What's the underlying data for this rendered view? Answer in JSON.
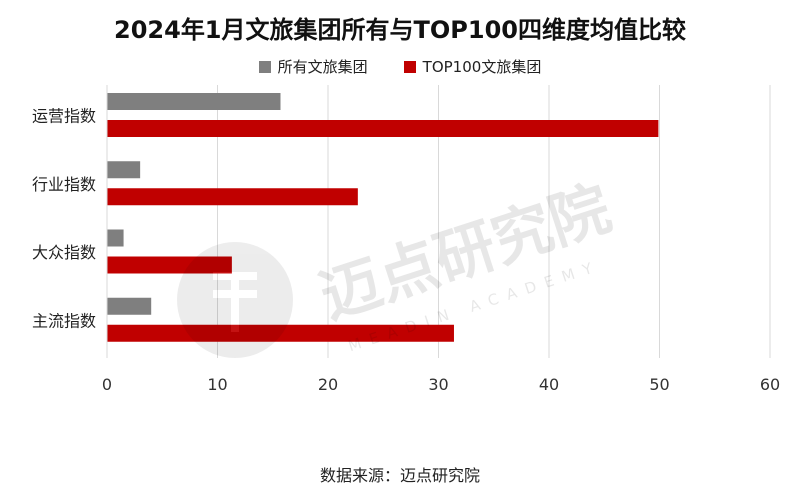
{
  "chart_data": {
    "type": "bar",
    "orientation": "horizontal",
    "title": "2024年1月文旅集团所有与TOP100四维度均值比较",
    "categories": [
      "运营指数",
      "行业指数",
      "大众指数",
      "主流指数"
    ],
    "series": [
      {
        "name": "所有文旅集团",
        "color": "#7f7f7f",
        "values": [
          15.7,
          3.0,
          1.5,
          4.0
        ]
      },
      {
        "name": "TOP100文旅集团",
        "color": "#c00000",
        "values": [
          49.9,
          22.7,
          11.3,
          31.4
        ]
      }
    ],
    "xlim": [
      0,
      60
    ],
    "xticks": [
      0,
      10,
      20,
      30,
      40,
      50,
      60
    ],
    "grid": "vertical",
    "legend_position": "top"
  },
  "watermark": {
    "brand": "迈点研究院",
    "sub": "MEADIN ACADEMY",
    "logo_icon": "meadin-logo-icon"
  },
  "source": "数据来源：迈点研究院"
}
